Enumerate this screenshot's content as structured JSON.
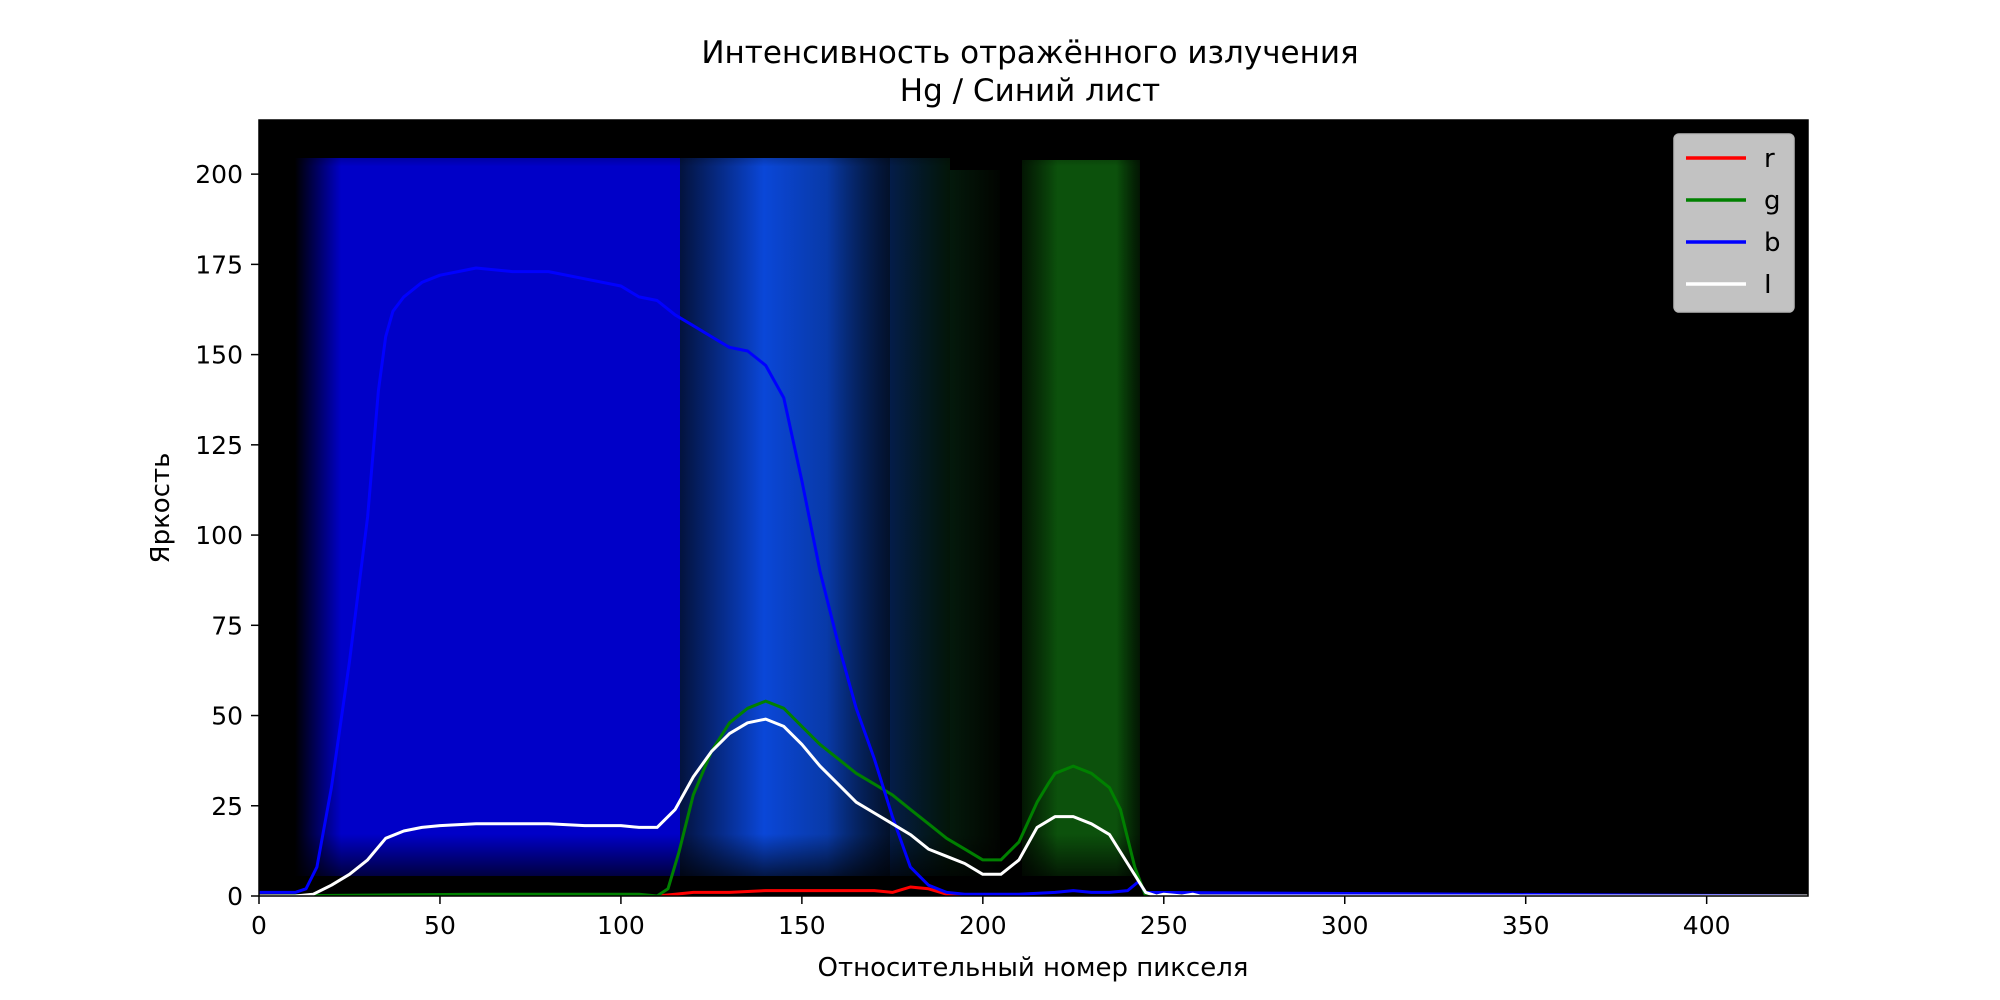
{
  "chart_data": {
    "type": "line",
    "title": "Интенсивность отражённого излучения",
    "subtitle": "Hg / Синий лист",
    "xlabel": "Относительный номер пикселя",
    "ylabel": "Яркость",
    "xlim": [
      0,
      428
    ],
    "ylim": [
      0,
      215
    ],
    "x_ticks": [
      0,
      50,
      100,
      150,
      200,
      250,
      300,
      350,
      400
    ],
    "y_ticks": [
      0,
      25,
      50,
      75,
      100,
      125,
      150,
      175,
      200
    ],
    "grid": false,
    "legend_position": "top-right",
    "background_image": "spectrum photo: dark background, blue band 20–160, fading blue 160–185, green bands 180–200 and 213–243",
    "series": [
      {
        "name": "r",
        "color": "#ff0000",
        "x": [
          0,
          110,
          115,
          120,
          130,
          140,
          150,
          160,
          170,
          175,
          180,
          185,
          190,
          195,
          200
        ],
        "y": [
          0,
          0,
          0.5,
          1,
          1,
          1.5,
          1.5,
          1.5,
          1.5,
          1,
          2.5,
          2,
          0.5,
          0,
          0
        ]
      },
      {
        "name": "g",
        "color": "#008000",
        "x": [
          0,
          60,
          105,
          110,
          113,
          116,
          120,
          125,
          130,
          135,
          140,
          145,
          150,
          155,
          160,
          165,
          170,
          175,
          180,
          185,
          190,
          195,
          200,
          205,
          210,
          215,
          218,
          220,
          225,
          230,
          235,
          238,
          240,
          242,
          245,
          430
        ],
        "y": [
          0,
          0.5,
          0.5,
          0,
          2,
          12,
          28,
          40,
          48,
          52,
          54,
          52,
          47,
          42,
          38,
          34,
          31,
          28,
          24,
          20,
          16,
          13,
          10,
          10,
          15,
          26,
          31,
          34,
          36,
          34,
          30,
          24,
          16,
          8,
          0,
          0
        ]
      },
      {
        "name": "b",
        "color": "#0000ff",
        "x": [
          0,
          5,
          10,
          13,
          16,
          20,
          25,
          30,
          33,
          35,
          37,
          40,
          45,
          50,
          55,
          60,
          70,
          80,
          90,
          100,
          105,
          110,
          115,
          120,
          125,
          130,
          135,
          140,
          145,
          150,
          155,
          160,
          165,
          170,
          175,
          180,
          185,
          190,
          195,
          200,
          210,
          220,
          225,
          230,
          235,
          240,
          243,
          245,
          430
        ],
        "y": [
          1,
          1,
          1,
          2,
          8,
          30,
          65,
          105,
          140,
          155,
          162,
          166,
          170,
          172,
          173,
          174,
          173,
          173,
          171,
          169,
          166,
          165,
          161,
          158,
          155,
          152,
          151,
          147,
          138,
          115,
          90,
          70,
          52,
          38,
          22,
          8,
          3,
          1,
          0.5,
          0.5,
          0.5,
          1,
          1.5,
          1,
          1,
          1.5,
          4,
          1,
          0
        ]
      },
      {
        "name": "I",
        "color": "#ffffff",
        "x": [
          0,
          10,
          15,
          20,
          25,
          30,
          35,
          40,
          45,
          50,
          60,
          70,
          80,
          90,
          100,
          105,
          110,
          115,
          120,
          125,
          130,
          135,
          140,
          145,
          150,
          155,
          160,
          165,
          170,
          175,
          180,
          185,
          190,
          195,
          200,
          205,
          210,
          215,
          220,
          225,
          230,
          235,
          240,
          245,
          248,
          250,
          255,
          258,
          260,
          430
        ],
        "y": [
          0,
          0,
          0.5,
          3,
          6,
          10,
          16,
          18,
          19,
          19.5,
          20,
          20,
          20,
          19.5,
          19.5,
          19,
          19,
          24,
          33,
          40,
          45,
          48,
          49,
          47,
          42,
          36,
          31,
          26,
          23,
          20,
          17,
          13,
          11,
          9,
          6,
          6,
          10,
          19,
          22,
          22,
          20,
          17,
          9,
          1,
          0,
          0.5,
          0,
          0.5,
          0,
          0
        ]
      }
    ]
  }
}
